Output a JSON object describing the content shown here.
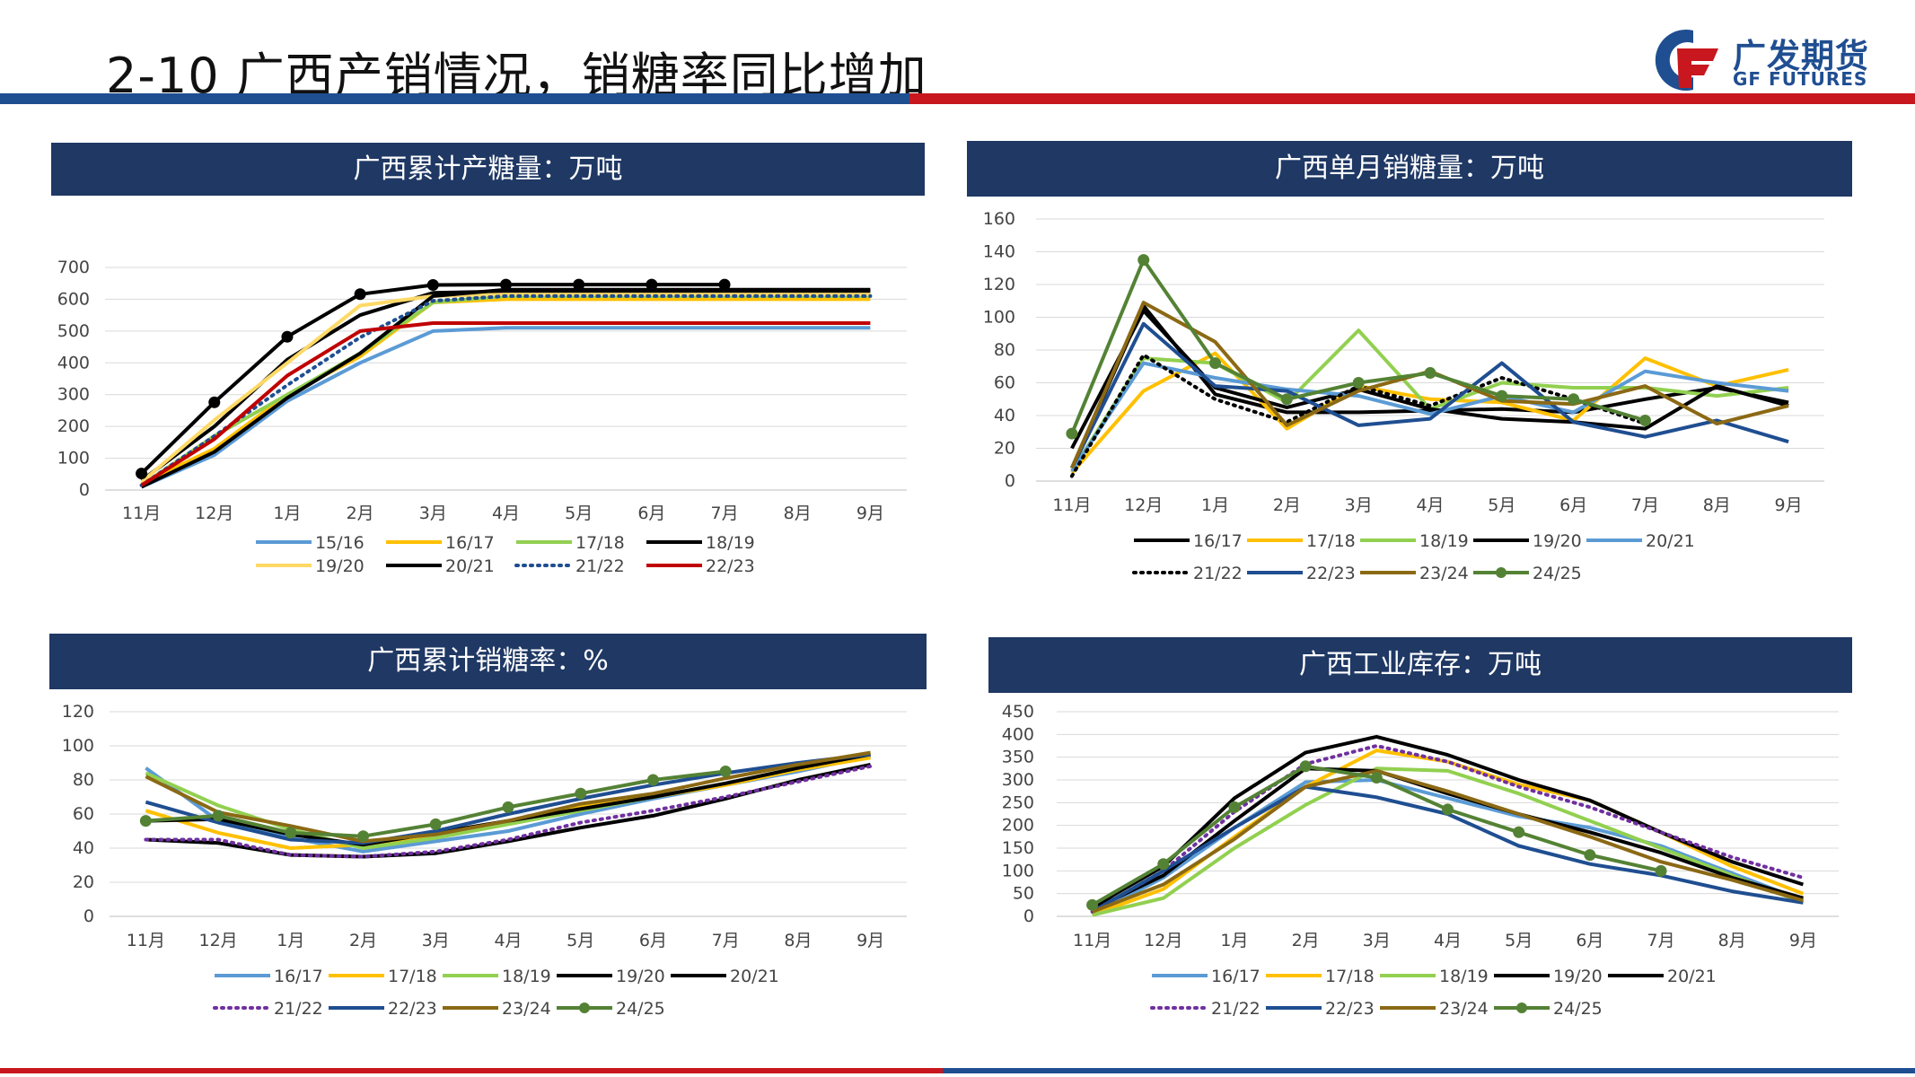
{
  "page": {
    "title": "2-10 广西产销情况，销糖率同比增加"
  },
  "logo": {
    "cn": "广发期货",
    "en": "GF FUTURES"
  },
  "colors": {
    "blue": "#1f4e91",
    "red": "#c8171e",
    "header": "#1f3864"
  },
  "chart_data": [
    {
      "title": "广西累计产糖量：万吨",
      "type": "line",
      "categories": [
        "11月",
        "12月",
        "1月",
        "2月",
        "3月",
        "4月",
        "5月",
        "6月",
        "7月",
        "8月",
        "9月"
      ],
      "ylim": [
        0,
        700
      ],
      "yticks": [
        0,
        100,
        200,
        300,
        400,
        500,
        600,
        700
      ],
      "series": [
        {
          "name": "15/16",
          "color": "#5b9bd5",
          "values": [
            10,
            110,
            280,
            400,
            500,
            510,
            510,
            510,
            510,
            510,
            510
          ]
        },
        {
          "name": "16/17",
          "color": "#ffc000",
          "values": [
            20,
            130,
            300,
            420,
            590,
            600,
            600,
            600,
            600,
            600,
            600
          ]
        },
        {
          "name": "17/18",
          "color": "#92d050",
          "values": [
            15,
            170,
            300,
            430,
            590,
            610,
            610,
            610,
            610,
            610,
            610
          ]
        },
        {
          "name": "18/19",
          "color": "#000000",
          "values": [
            30,
            200,
            410,
            550,
            620,
            625,
            625,
            625,
            625,
            625,
            625
          ]
        },
        {
          "name": "19/20",
          "color": "#ffd966",
          "values": [
            25,
            220,
            400,
            580,
            610,
            615,
            615,
            615,
            615,
            615,
            615
          ]
        },
        {
          "name": "20/21",
          "color": "#000000",
          "values": [
            10,
            120,
            290,
            430,
            610,
            630,
            630,
            630,
            630,
            630,
            630
          ]
        },
        {
          "name": "21/22",
          "color": "#1f4e91",
          "dotted": true,
          "values": [
            15,
            170,
            330,
            480,
            595,
            610,
            610,
            610,
            610,
            610,
            610
          ]
        },
        {
          "name": "22/23",
          "color": "#c00000",
          "values": [
            15,
            160,
            360,
            500,
            525,
            525,
            525,
            525,
            525,
            525,
            525
          ]
        },
        {
          "name": "",
          "color": "#000000",
          "markers": true,
          "values": [
            52,
            276,
            482,
            616,
            645,
            646,
            646,
            646,
            646,
            null,
            null
          ]
        }
      ]
    },
    {
      "title": "广西单月销糖量：万吨",
      "type": "line",
      "categories": [
        "11月",
        "12月",
        "1月",
        "2月",
        "3月",
        "4月",
        "5月",
        "6月",
        "7月",
        "8月",
        "9月"
      ],
      "ylim": [
        0,
        160
      ],
      "yticks": [
        0,
        20,
        40,
        60,
        80,
        100,
        120,
        140,
        160
      ],
      "series": [
        {
          "name": "16/17",
          "color": "#000000",
          "values": [
            8,
            107,
            53,
            42,
            42,
            43,
            44,
            42,
            50,
            57,
            48
          ]
        },
        {
          "name": "17/18",
          "color": "#ffc000",
          "values": [
            5,
            55,
            78,
            32,
            58,
            50,
            48,
            37,
            75,
            58,
            68
          ]
        },
        {
          "name": "18/19",
          "color": "#92d050",
          "values": [
            6,
            75,
            72,
            48,
            92,
            44,
            60,
            57,
            57,
            52,
            57
          ]
        },
        {
          "name": "19/20",
          "color": "#000000",
          "values": [
            20,
            104,
            57,
            45,
            56,
            44,
            38,
            36,
            32,
            58,
            46
          ]
        },
        {
          "name": "20/21",
          "color": "#5b9bd5",
          "values": [
            6,
            72,
            63,
            56,
            52,
            41,
            52,
            42,
            67,
            60,
            55
          ]
        },
        {
          "name": "21/22",
          "color": "#000000",
          "dotted": true,
          "values": [
            3,
            77,
            50,
            36,
            58,
            46,
            63,
            50,
            35,
            null,
            null
          ]
        },
        {
          "name": "22/23",
          "color": "#1f4e91",
          "values": [
            8,
            96,
            58,
            55,
            34,
            38,
            72,
            36,
            27,
            37,
            24
          ]
        },
        {
          "name": "23/24",
          "color": "#8b6914",
          "values": [
            8,
            109,
            85,
            34,
            55,
            67,
            49,
            47,
            58,
            35,
            46
          ]
        },
        {
          "name": "24/25",
          "color": "#548235",
          "markers": true,
          "values": [
            29,
            135,
            72,
            50,
            60,
            66,
            52,
            50,
            37,
            null,
            null
          ]
        }
      ]
    },
    {
      "title": "广西累计销糖率：%",
      "type": "line",
      "categories": [
        "11月",
        "12月",
        "1月",
        "2月",
        "3月",
        "4月",
        "5月",
        "6月",
        "7月",
        "8月",
        "9月"
      ],
      "ylim": [
        0,
        120
      ],
      "yticks": [
        0,
        20,
        40,
        60,
        80,
        100,
        120
      ],
      "series": [
        {
          "name": "16/17",
          "color": "#5b9bd5",
          "values": [
            87,
            56,
            46,
            38,
            44,
            50,
            60,
            69,
            77,
            85,
            94
          ]
        },
        {
          "name": "17/18",
          "color": "#ffc000",
          "values": [
            62,
            49,
            40,
            42,
            48,
            56,
            64,
            70,
            77,
            86,
            93
          ]
        },
        {
          "name": "18/19",
          "color": "#92d050",
          "values": [
            84,
            65,
            51,
            40,
            46,
            54,
            62,
            70,
            78,
            87,
            95
          ]
        },
        {
          "name": "19/20",
          "color": "#000000",
          "values": [
            56,
            57,
            48,
            42,
            49,
            56,
            63,
            70,
            78,
            87,
            95
          ]
        },
        {
          "name": "20/21",
          "color": "#000000",
          "values": [
            45,
            43,
            36,
            35,
            37,
            44,
            52,
            59,
            69,
            80,
            89
          ]
        },
        {
          "name": "21/22",
          "color": "#7030a0",
          "dotted": true,
          "values": [
            45,
            45,
            36,
            35,
            38,
            45,
            55,
            62,
            70,
            79,
            88
          ]
        },
        {
          "name": "22/23",
          "color": "#1f4e91",
          "values": [
            67,
            55,
            45,
            43,
            50,
            60,
            69,
            77,
            84,
            90,
            95
          ]
        },
        {
          "name": "23/24",
          "color": "#8b6914",
          "values": [
            82,
            61,
            53,
            44,
            48,
            56,
            66,
            72,
            81,
            89,
            96
          ]
        },
        {
          "name": "24/25",
          "color": "#548235",
          "markers": true,
          "values": [
            56,
            59,
            49,
            47,
            54,
            64,
            72,
            80,
            85,
            null,
            null
          ]
        }
      ]
    },
    {
      "title": "广西工业库存：万吨",
      "type": "line",
      "categories": [
        "11月",
        "12月",
        "1月",
        "2月",
        "3月",
        "4月",
        "5月",
        "6月",
        "7月",
        "8月",
        "9月"
      ],
      "ylim": [
        0,
        450
      ],
      "yticks": [
        0,
        50,
        100,
        150,
        200,
        250,
        300,
        350,
        400,
        450
      ],
      "series": [
        {
          "name": "16/17",
          "color": "#5b9bd5",
          "values": [
            5,
            85,
            195,
            295,
            300,
            260,
            220,
            195,
            155,
            95,
            35
          ]
        },
        {
          "name": "17/18",
          "color": "#ffc000",
          "values": [
            3,
            60,
            175,
            285,
            365,
            340,
            290,
            255,
            185,
            110,
            50
          ]
        },
        {
          "name": "18/19",
          "color": "#92d050",
          "values": [
            3,
            40,
            150,
            245,
            325,
            320,
            270,
            210,
            150,
            90,
            30
          ]
        },
        {
          "name": "19/20",
          "color": "#000000",
          "values": [
            20,
            110,
            260,
            360,
            395,
            355,
            300,
            255,
            185,
            120,
            70
          ]
        },
        {
          "name": "20/21",
          "color": "#000000",
          "values": [
            15,
            90,
            210,
            325,
            320,
            270,
            225,
            185,
            140,
            85,
            40
          ]
        },
        {
          "name": "21/22",
          "color": "#7030a0",
          "dotted": true,
          "values": [
            10,
            100,
            230,
            335,
            375,
            340,
            285,
            240,
            185,
            130,
            85
          ]
        },
        {
          "name": "22/23",
          "color": "#1f4e91",
          "values": [
            10,
            100,
            195,
            285,
            262,
            225,
            155,
            115,
            90,
            55,
            30
          ]
        },
        {
          "name": "23/24",
          "color": "#8b6914",
          "values": [
            10,
            70,
            170,
            285,
            320,
            275,
            225,
            175,
            120,
            80,
            35
          ]
        },
        {
          "name": "24/25",
          "color": "#548235",
          "markers": true,
          "values": [
            25,
            115,
            240,
            330,
            305,
            235,
            185,
            135,
            100,
            null,
            null
          ]
        }
      ]
    }
  ]
}
